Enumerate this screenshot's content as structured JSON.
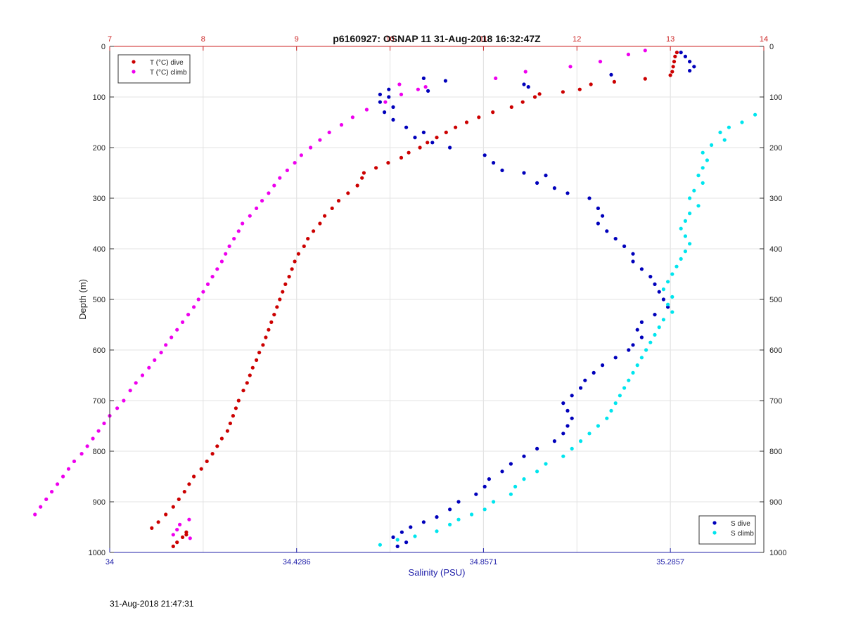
{
  "timestamp": "31-Aug-2018 21:47:31",
  "chart_data": {
    "type": "scatter",
    "title": "p6160927: OSNAP 11 31-Aug-2018 16:32:47Z",
    "ylabel": "Depth (m)",
    "xlabel_bottom": "Salinity (PSU)",
    "ylim": [
      0,
      1000
    ],
    "y_reversed": true,
    "yticks": [
      0,
      100,
      200,
      300,
      400,
      500,
      600,
      700,
      800,
      900,
      1000
    ],
    "ytick_labels": [
      "0",
      "100",
      "200",
      "300",
      "400",
      "500",
      "600",
      "700",
      "800",
      "900",
      "1000"
    ],
    "x_bottom": {
      "label": "Salinity (PSU)",
      "lim": [
        34,
        35.5
      ],
      "ticks": [
        34,
        34.4286,
        34.8571,
        35.2857
      ],
      "tick_labels": [
        "34",
        "34.4286",
        "34.8571",
        "35.2857"
      ],
      "color": "#2222aa"
    },
    "x_top": {
      "label": "",
      "lim": [
        7,
        14
      ],
      "ticks": [
        7,
        8,
        9,
        10,
        11,
        12,
        13,
        14
      ],
      "tick_labels": [
        "7",
        "8",
        "9",
        "10",
        "11",
        "12",
        "13",
        "14"
      ],
      "color": "#cc2222"
    },
    "grid": true,
    "legends": [
      {
        "placement": "top-left",
        "entries": [
          {
            "name": "T (°C) dive",
            "color": "#cc0000"
          },
          {
            "name": "T (°C) climb",
            "color": "#ee00ee"
          }
        ]
      },
      {
        "placement": "bottom-right",
        "entries": [
          {
            "name": "S dive",
            "color": "#0000bb"
          },
          {
            "name": "S climb",
            "color": "#00e5ee"
          }
        ]
      }
    ],
    "series": [
      {
        "name": "T (°C) dive",
        "axis": "top",
        "color": "#cc0000",
        "points": [
          [
            13.07,
            12
          ],
          [
            13.05,
            20
          ],
          [
            13.04,
            30
          ],
          [
            13.03,
            40
          ],
          [
            13.02,
            50
          ],
          [
            13.0,
            57
          ],
          [
            12.73,
            64
          ],
          [
            12.4,
            70
          ],
          [
            12.15,
            75
          ],
          [
            12.03,
            85
          ],
          [
            11.85,
            90
          ],
          [
            11.6,
            94
          ],
          [
            11.55,
            100
          ],
          [
            11.42,
            110
          ],
          [
            11.3,
            120
          ],
          [
            11.1,
            130
          ],
          [
            10.95,
            140
          ],
          [
            10.82,
            150
          ],
          [
            10.7,
            160
          ],
          [
            10.6,
            170
          ],
          [
            10.5,
            180
          ],
          [
            10.4,
            190
          ],
          [
            10.32,
            200
          ],
          [
            10.2,
            210
          ],
          [
            10.12,
            220
          ],
          [
            9.98,
            230
          ],
          [
            9.85,
            240
          ],
          [
            9.72,
            250
          ],
          [
            9.7,
            260
          ],
          [
            9.65,
            275
          ],
          [
            9.55,
            290
          ],
          [
            9.45,
            305
          ],
          [
            9.38,
            320
          ],
          [
            9.3,
            335
          ],
          [
            9.25,
            350
          ],
          [
            9.18,
            365
          ],
          [
            9.12,
            380
          ],
          [
            9.08,
            395
          ],
          [
            9.02,
            410
          ],
          [
            8.98,
            425
          ],
          [
            8.95,
            440
          ],
          [
            8.92,
            455
          ],
          [
            8.88,
            470
          ],
          [
            8.85,
            485
          ],
          [
            8.82,
            500
          ],
          [
            8.79,
            515
          ],
          [
            8.76,
            530
          ],
          [
            8.73,
            545
          ],
          [
            8.7,
            560
          ],
          [
            8.67,
            575
          ],
          [
            8.64,
            590
          ],
          [
            8.6,
            605
          ],
          [
            8.57,
            620
          ],
          [
            8.53,
            635
          ],
          [
            8.5,
            650
          ],
          [
            8.47,
            665
          ],
          [
            8.43,
            680
          ],
          [
            8.38,
            700
          ],
          [
            8.35,
            715
          ],
          [
            8.32,
            730
          ],
          [
            8.29,
            745
          ],
          [
            8.26,
            760
          ],
          [
            8.2,
            775
          ],
          [
            8.15,
            790
          ],
          [
            8.1,
            805
          ],
          [
            8.04,
            820
          ],
          [
            7.98,
            835
          ],
          [
            7.9,
            850
          ],
          [
            7.85,
            865
          ],
          [
            7.8,
            880
          ],
          [
            7.74,
            895
          ],
          [
            7.68,
            910
          ],
          [
            7.6,
            925
          ],
          [
            7.52,
            940
          ],
          [
            7.45,
            952
          ],
          [
            7.82,
            960
          ],
          [
            7.82,
            965
          ],
          [
            7.78,
            970
          ],
          [
            7.72,
            980
          ],
          [
            7.68,
            988
          ]
        ]
      },
      {
        "name": "T (°C) climb",
        "axis": "top",
        "color": "#ee00ee",
        "points": [
          [
            12.73,
            8
          ],
          [
            12.55,
            16
          ],
          [
            12.25,
            30
          ],
          [
            11.93,
            40
          ],
          [
            11.45,
            50
          ],
          [
            11.13,
            63
          ],
          [
            10.1,
            75
          ],
          [
            10.38,
            80
          ],
          [
            10.3,
            85
          ],
          [
            10.12,
            95
          ],
          [
            9.95,
            110
          ],
          [
            9.75,
            125
          ],
          [
            9.6,
            140
          ],
          [
            9.48,
            155
          ],
          [
            9.35,
            170
          ],
          [
            9.25,
            185
          ],
          [
            9.15,
            200
          ],
          [
            9.05,
            215
          ],
          [
            8.98,
            230
          ],
          [
            8.9,
            245
          ],
          [
            8.82,
            260
          ],
          [
            8.76,
            275
          ],
          [
            8.7,
            290
          ],
          [
            8.63,
            305
          ],
          [
            8.57,
            320
          ],
          [
            8.5,
            335
          ],
          [
            8.42,
            350
          ],
          [
            8.38,
            365
          ],
          [
            8.33,
            380
          ],
          [
            8.28,
            395
          ],
          [
            8.24,
            410
          ],
          [
            8.2,
            425
          ],
          [
            8.15,
            440
          ],
          [
            8.1,
            455
          ],
          [
            8.05,
            470
          ],
          [
            8.0,
            485
          ],
          [
            7.95,
            500
          ],
          [
            7.9,
            515
          ],
          [
            7.84,
            530
          ],
          [
            7.78,
            545
          ],
          [
            7.72,
            560
          ],
          [
            7.66,
            575
          ],
          [
            7.6,
            590
          ],
          [
            7.55,
            605
          ],
          [
            7.48,
            620
          ],
          [
            7.42,
            635
          ],
          [
            7.35,
            650
          ],
          [
            7.28,
            665
          ],
          [
            7.22,
            680
          ],
          [
            7.15,
            700
          ],
          [
            7.08,
            715
          ],
          [
            7.0,
            730
          ],
          [
            6.94,
            745
          ],
          [
            6.88,
            760
          ],
          [
            6.82,
            775
          ],
          [
            6.76,
            790
          ],
          [
            6.7,
            805
          ],
          [
            6.62,
            820
          ],
          [
            6.56,
            835
          ],
          [
            6.5,
            850
          ],
          [
            6.44,
            865
          ],
          [
            6.38,
            880
          ],
          [
            6.32,
            895
          ],
          [
            6.26,
            910
          ],
          [
            6.2,
            925
          ],
          [
            7.85,
            935
          ],
          [
            7.75,
            945
          ],
          [
            7.72,
            955
          ],
          [
            7.68,
            965
          ],
          [
            7.86,
            972
          ]
        ]
      },
      {
        "name": "S dive",
        "axis": "bottom",
        "color": "#0000bb",
        "points": [
          [
            35.31,
            12
          ],
          [
            35.32,
            20
          ],
          [
            35.33,
            30
          ],
          [
            35.34,
            40
          ],
          [
            35.33,
            48
          ],
          [
            35.15,
            56
          ],
          [
            34.72,
            63
          ],
          [
            34.77,
            68
          ],
          [
            34.73,
            88
          ],
          [
            34.95,
            75
          ],
          [
            34.96,
            80
          ],
          [
            34.62,
            95
          ],
          [
            34.64,
            100
          ],
          [
            34.64,
            85
          ],
          [
            34.62,
            110
          ],
          [
            34.65,
            120
          ],
          [
            34.63,
            130
          ],
          [
            34.65,
            145
          ],
          [
            34.68,
            160
          ],
          [
            34.72,
            170
          ],
          [
            34.7,
            180
          ],
          [
            34.74,
            190
          ],
          [
            34.78,
            200
          ],
          [
            34.86,
            215
          ],
          [
            34.88,
            230
          ],
          [
            34.9,
            245
          ],
          [
            34.95,
            250
          ],
          [
            35.0,
            255
          ],
          [
            34.98,
            270
          ],
          [
            35.02,
            280
          ],
          [
            35.05,
            290
          ],
          [
            35.1,
            300
          ],
          [
            35.12,
            320
          ],
          [
            35.13,
            335
          ],
          [
            35.12,
            350
          ],
          [
            35.14,
            365
          ],
          [
            35.16,
            380
          ],
          [
            35.18,
            395
          ],
          [
            35.2,
            410
          ],
          [
            35.2,
            425
          ],
          [
            35.22,
            440
          ],
          [
            35.24,
            455
          ],
          [
            35.25,
            470
          ],
          [
            35.26,
            485
          ],
          [
            35.27,
            500
          ],
          [
            35.28,
            515
          ],
          [
            35.25,
            530
          ],
          [
            35.22,
            545
          ],
          [
            35.21,
            560
          ],
          [
            35.22,
            575
          ],
          [
            35.2,
            590
          ],
          [
            35.19,
            600
          ],
          [
            35.16,
            615
          ],
          [
            35.13,
            630
          ],
          [
            35.11,
            645
          ],
          [
            35.09,
            660
          ],
          [
            35.08,
            675
          ],
          [
            35.06,
            690
          ],
          [
            35.04,
            705
          ],
          [
            35.05,
            720
          ],
          [
            35.06,
            735
          ],
          [
            35.05,
            750
          ],
          [
            35.04,
            765
          ],
          [
            35.02,
            780
          ],
          [
            34.98,
            795
          ],
          [
            34.95,
            810
          ],
          [
            34.92,
            825
          ],
          [
            34.9,
            840
          ],
          [
            34.87,
            855
          ],
          [
            34.86,
            870
          ],
          [
            34.84,
            885
          ],
          [
            34.8,
            900
          ],
          [
            34.78,
            915
          ],
          [
            34.75,
            930
          ],
          [
            34.72,
            940
          ],
          [
            34.69,
            950
          ],
          [
            34.67,
            960
          ],
          [
            34.65,
            970
          ],
          [
            34.68,
            980
          ],
          [
            34.66,
            988
          ]
        ]
      },
      {
        "name": "S climb",
        "axis": "bottom",
        "color": "#00e5ee",
        "points": [
          [
            35.48,
            135
          ],
          [
            35.45,
            150
          ],
          [
            35.42,
            160
          ],
          [
            35.4,
            170
          ],
          [
            35.41,
            185
          ],
          [
            35.38,
            195
          ],
          [
            35.36,
            210
          ],
          [
            35.37,
            225
          ],
          [
            35.36,
            240
          ],
          [
            35.35,
            255
          ],
          [
            35.36,
            270
          ],
          [
            35.34,
            285
          ],
          [
            35.33,
            300
          ],
          [
            35.35,
            315
          ],
          [
            35.33,
            330
          ],
          [
            35.32,
            345
          ],
          [
            35.31,
            360
          ],
          [
            35.32,
            375
          ],
          [
            35.33,
            390
          ],
          [
            35.32,
            405
          ],
          [
            35.31,
            420
          ],
          [
            35.3,
            435
          ],
          [
            35.29,
            450
          ],
          [
            35.28,
            465
          ],
          [
            35.27,
            480
          ],
          [
            35.29,
            495
          ],
          [
            35.28,
            510
          ],
          [
            35.29,
            525
          ],
          [
            35.27,
            540
          ],
          [
            35.26,
            555
          ],
          [
            35.25,
            570
          ],
          [
            35.24,
            585
          ],
          [
            35.23,
            600
          ],
          [
            35.22,
            615
          ],
          [
            35.21,
            630
          ],
          [
            35.2,
            645
          ],
          [
            35.19,
            660
          ],
          [
            35.18,
            675
          ],
          [
            35.17,
            690
          ],
          [
            35.16,
            705
          ],
          [
            35.15,
            720
          ],
          [
            35.14,
            735
          ],
          [
            35.12,
            750
          ],
          [
            35.1,
            765
          ],
          [
            35.08,
            780
          ],
          [
            35.06,
            795
          ],
          [
            35.04,
            810
          ],
          [
            35.0,
            825
          ],
          [
            34.98,
            840
          ],
          [
            34.95,
            855
          ],
          [
            34.93,
            870
          ],
          [
            34.92,
            885
          ],
          [
            34.88,
            900
          ],
          [
            34.86,
            915
          ],
          [
            34.83,
            925
          ],
          [
            34.8,
            935
          ],
          [
            34.78,
            945
          ],
          [
            34.75,
            958
          ],
          [
            34.7,
            968
          ],
          [
            34.66,
            975
          ],
          [
            34.62,
            985
          ]
        ]
      }
    ]
  }
}
